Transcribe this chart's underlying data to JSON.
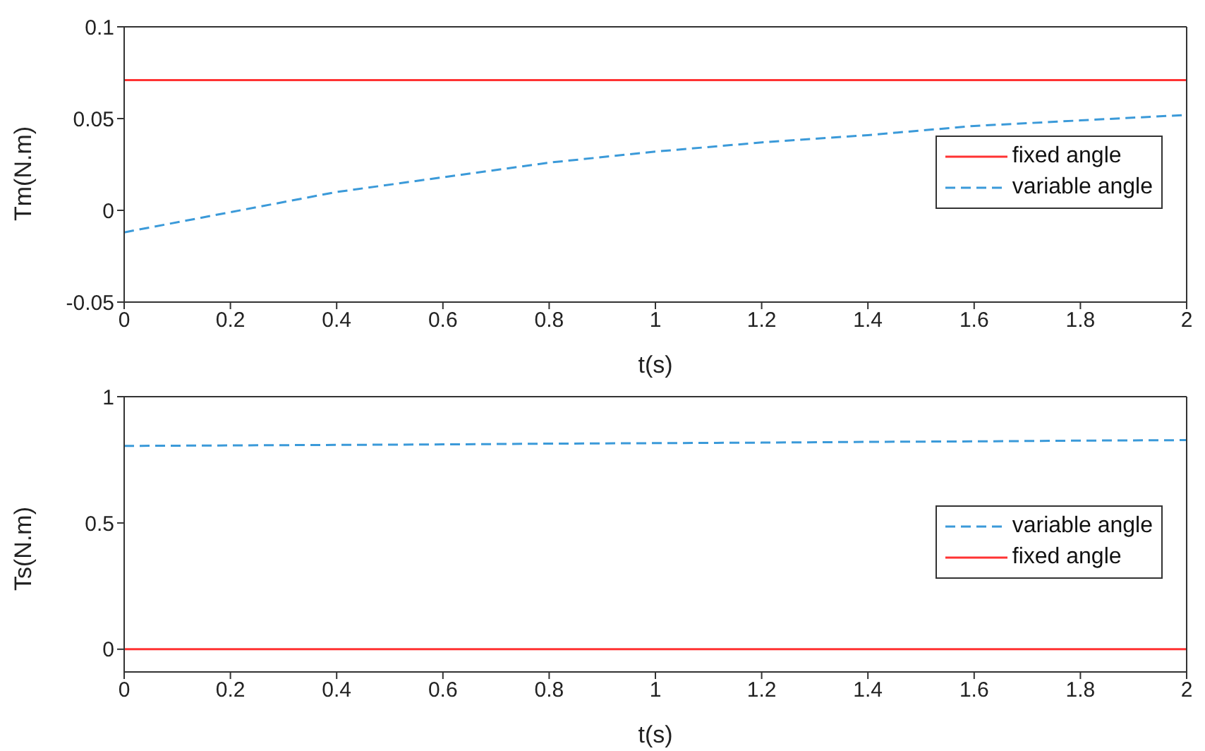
{
  "chart_data": [
    {
      "type": "line",
      "xlabel": "t(s)",
      "ylabel": "Tm(N.m)",
      "x": [
        0,
        0.2,
        0.4,
        0.6,
        0.8,
        1,
        1.2,
        1.4,
        1.6,
        1.8,
        2
      ],
      "series": [
        {
          "name": "fixed angle",
          "color": "#ff3333",
          "line_style": "solid",
          "values": [
            0.071,
            0.071,
            0.071,
            0.071,
            0.071,
            0.071,
            0.071,
            0.071,
            0.071,
            0.071,
            0.071
          ]
        },
        {
          "name": "variable angle",
          "color": "#3b9ad9",
          "line_style": "dashed",
          "values": [
            -0.012,
            -0.001,
            0.01,
            0.018,
            0.026,
            0.032,
            0.037,
            0.041,
            0.046,
            0.049,
            0.052
          ]
        }
      ],
      "xlim": [
        0,
        2
      ],
      "xticks": [
        0,
        0.2,
        0.4,
        0.6,
        0.8,
        1,
        1.2,
        1.4,
        1.6,
        1.8,
        2
      ],
      "ylim": [
        -0.05,
        0.1
      ],
      "yticks": [
        -0.05,
        0,
        0.05,
        0.1
      ],
      "grid": false,
      "legend": "right",
      "marker": "none"
    },
    {
      "type": "line",
      "xlabel": "t(s)",
      "ylabel": "Ts(N.m)",
      "x": [
        0,
        0.2,
        0.4,
        0.6,
        0.8,
        1,
        1.2,
        1.4,
        1.6,
        1.8,
        2
      ],
      "series": [
        {
          "name": "variable angle",
          "color": "#3b9ad9",
          "line_style": "dashed",
          "values": [
            0.805,
            0.807,
            0.809,
            0.811,
            0.814,
            0.816,
            0.818,
            0.821,
            0.823,
            0.826,
            0.828
          ]
        },
        {
          "name": "fixed angle",
          "color": "#ff3333",
          "line_style": "solid",
          "values": [
            0,
            0,
            0,
            0,
            0,
            0,
            0,
            0,
            0,
            0,
            0
          ]
        }
      ],
      "xlim": [
        0,
        2
      ],
      "xticks": [
        0,
        0.2,
        0.4,
        0.6,
        0.8,
        1,
        1.2,
        1.4,
        1.6,
        1.8,
        2
      ],
      "ylim": [
        -0.09,
        1
      ],
      "yticks": [
        0,
        0.5,
        1
      ],
      "grid": false,
      "legend": "right",
      "marker": "none"
    }
  ]
}
